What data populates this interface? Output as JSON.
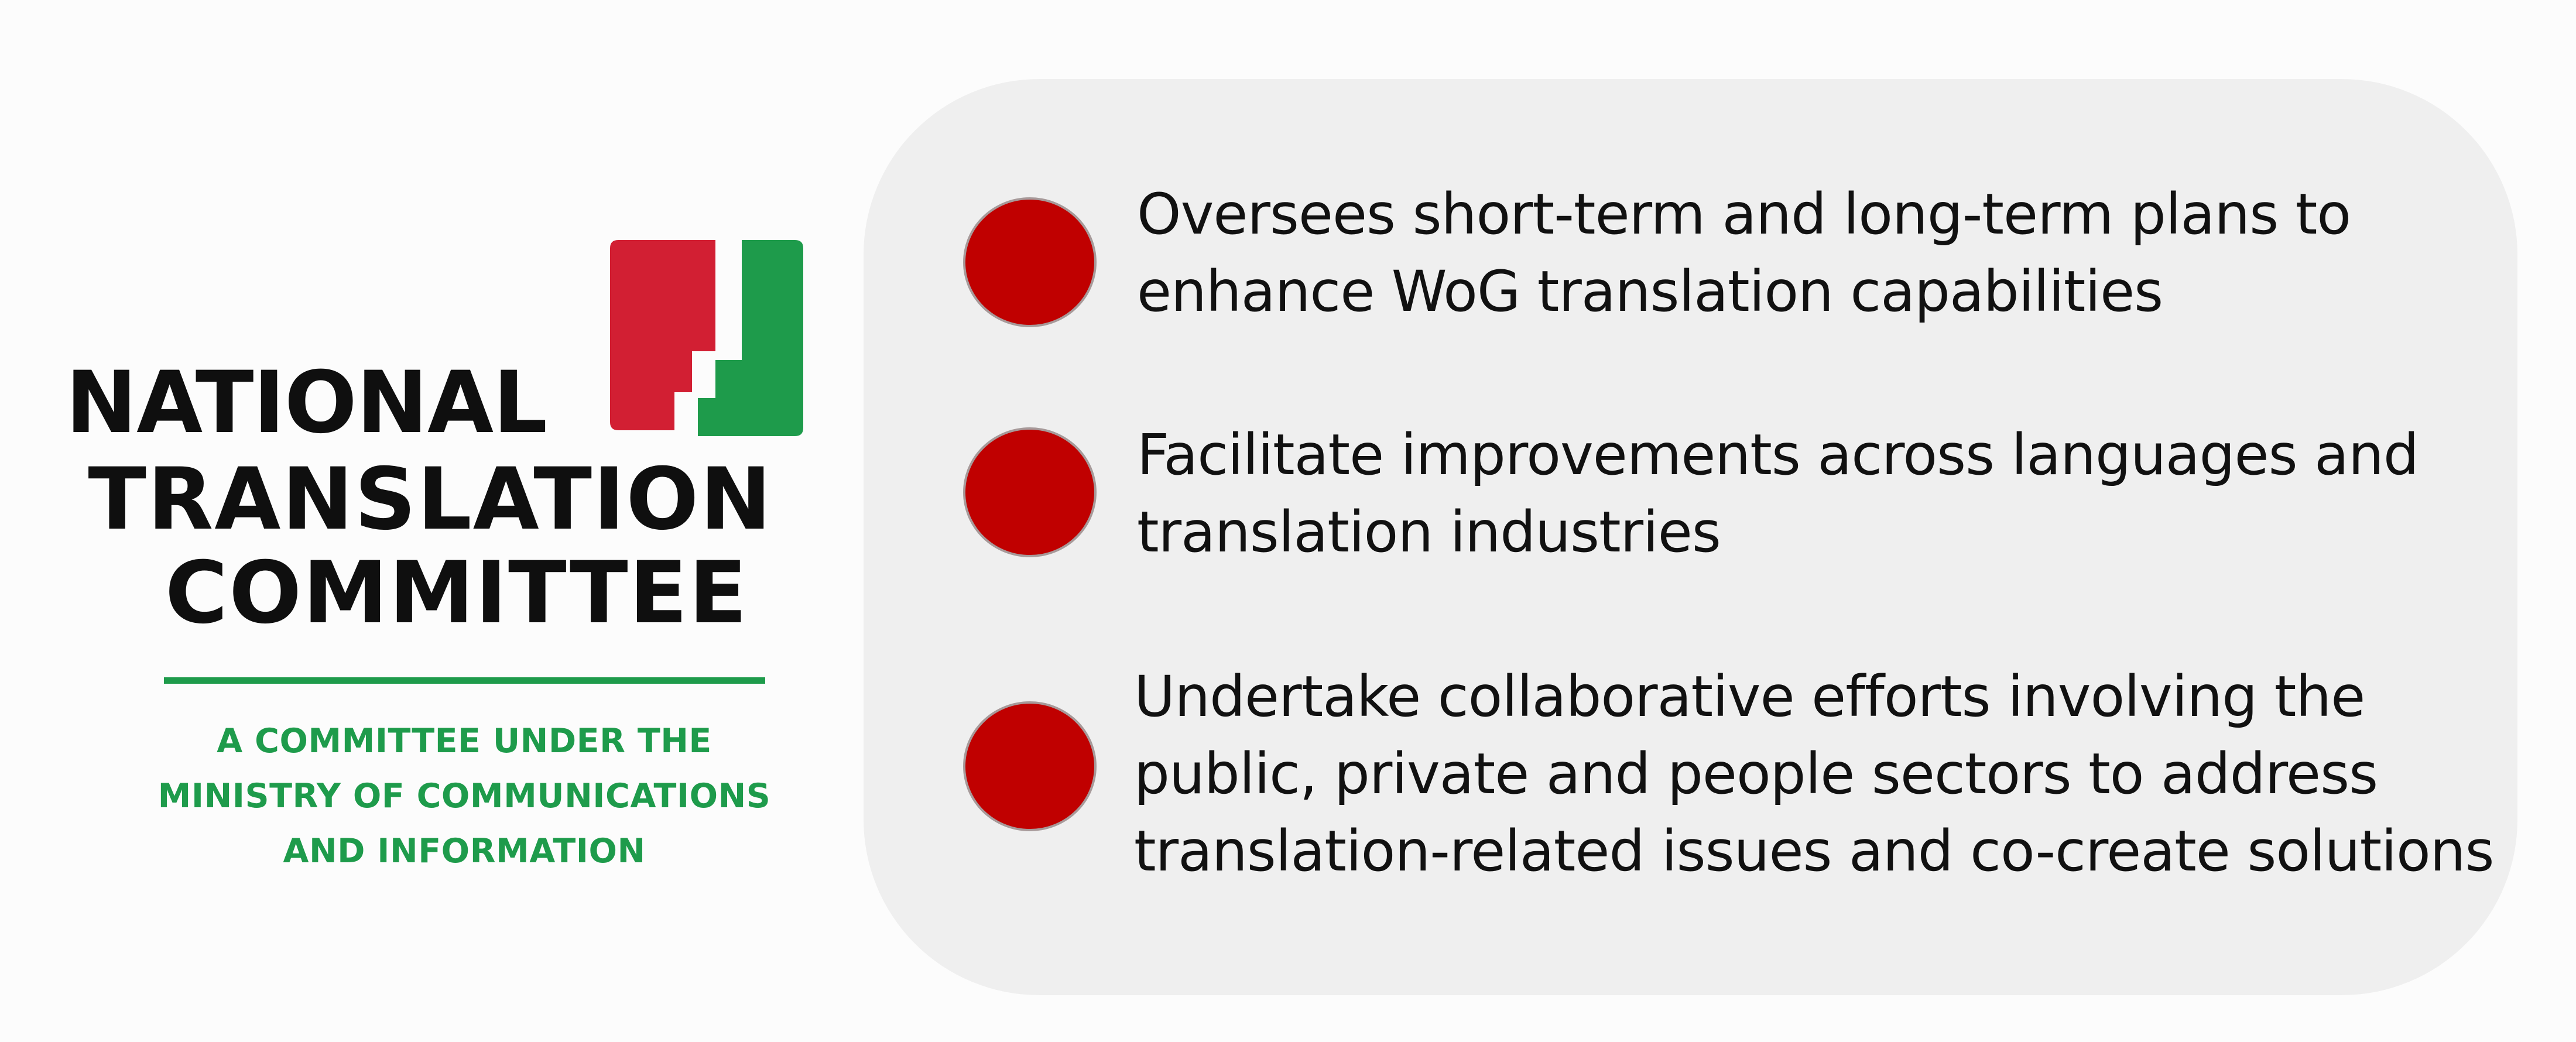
{
  "logo": {
    "lines": [
      "NATIONAL",
      "TRANSLATION",
      "COMMITTEE"
    ],
    "subtitle": [
      "A COMMITTEE UNDER THE",
      "MINISTRY OF COMMUNICATIONS",
      "AND INFORMATION"
    ],
    "colors": {
      "mark_red": "#d21f33",
      "mark_green": "#1e9b4b",
      "text_dark": "#0f0f0f",
      "subtitle_green": "#1e9b4b"
    }
  },
  "panel": {
    "background": "#efefef",
    "bullet_color": "#c00000",
    "items": [
      {
        "lines": [
          "Oversees short-term and long-term plans to",
          "enhance WoG translation capabilities"
        ]
      },
      {
        "lines": [
          "Facilitate improvements across languages and",
          "translation industries"
        ]
      },
      {
        "lines": [
          "Undertake collaborative efforts involving the",
          "public, private and people sectors to address",
          "translation-related issues and co-create solutions"
        ]
      }
    ]
  }
}
